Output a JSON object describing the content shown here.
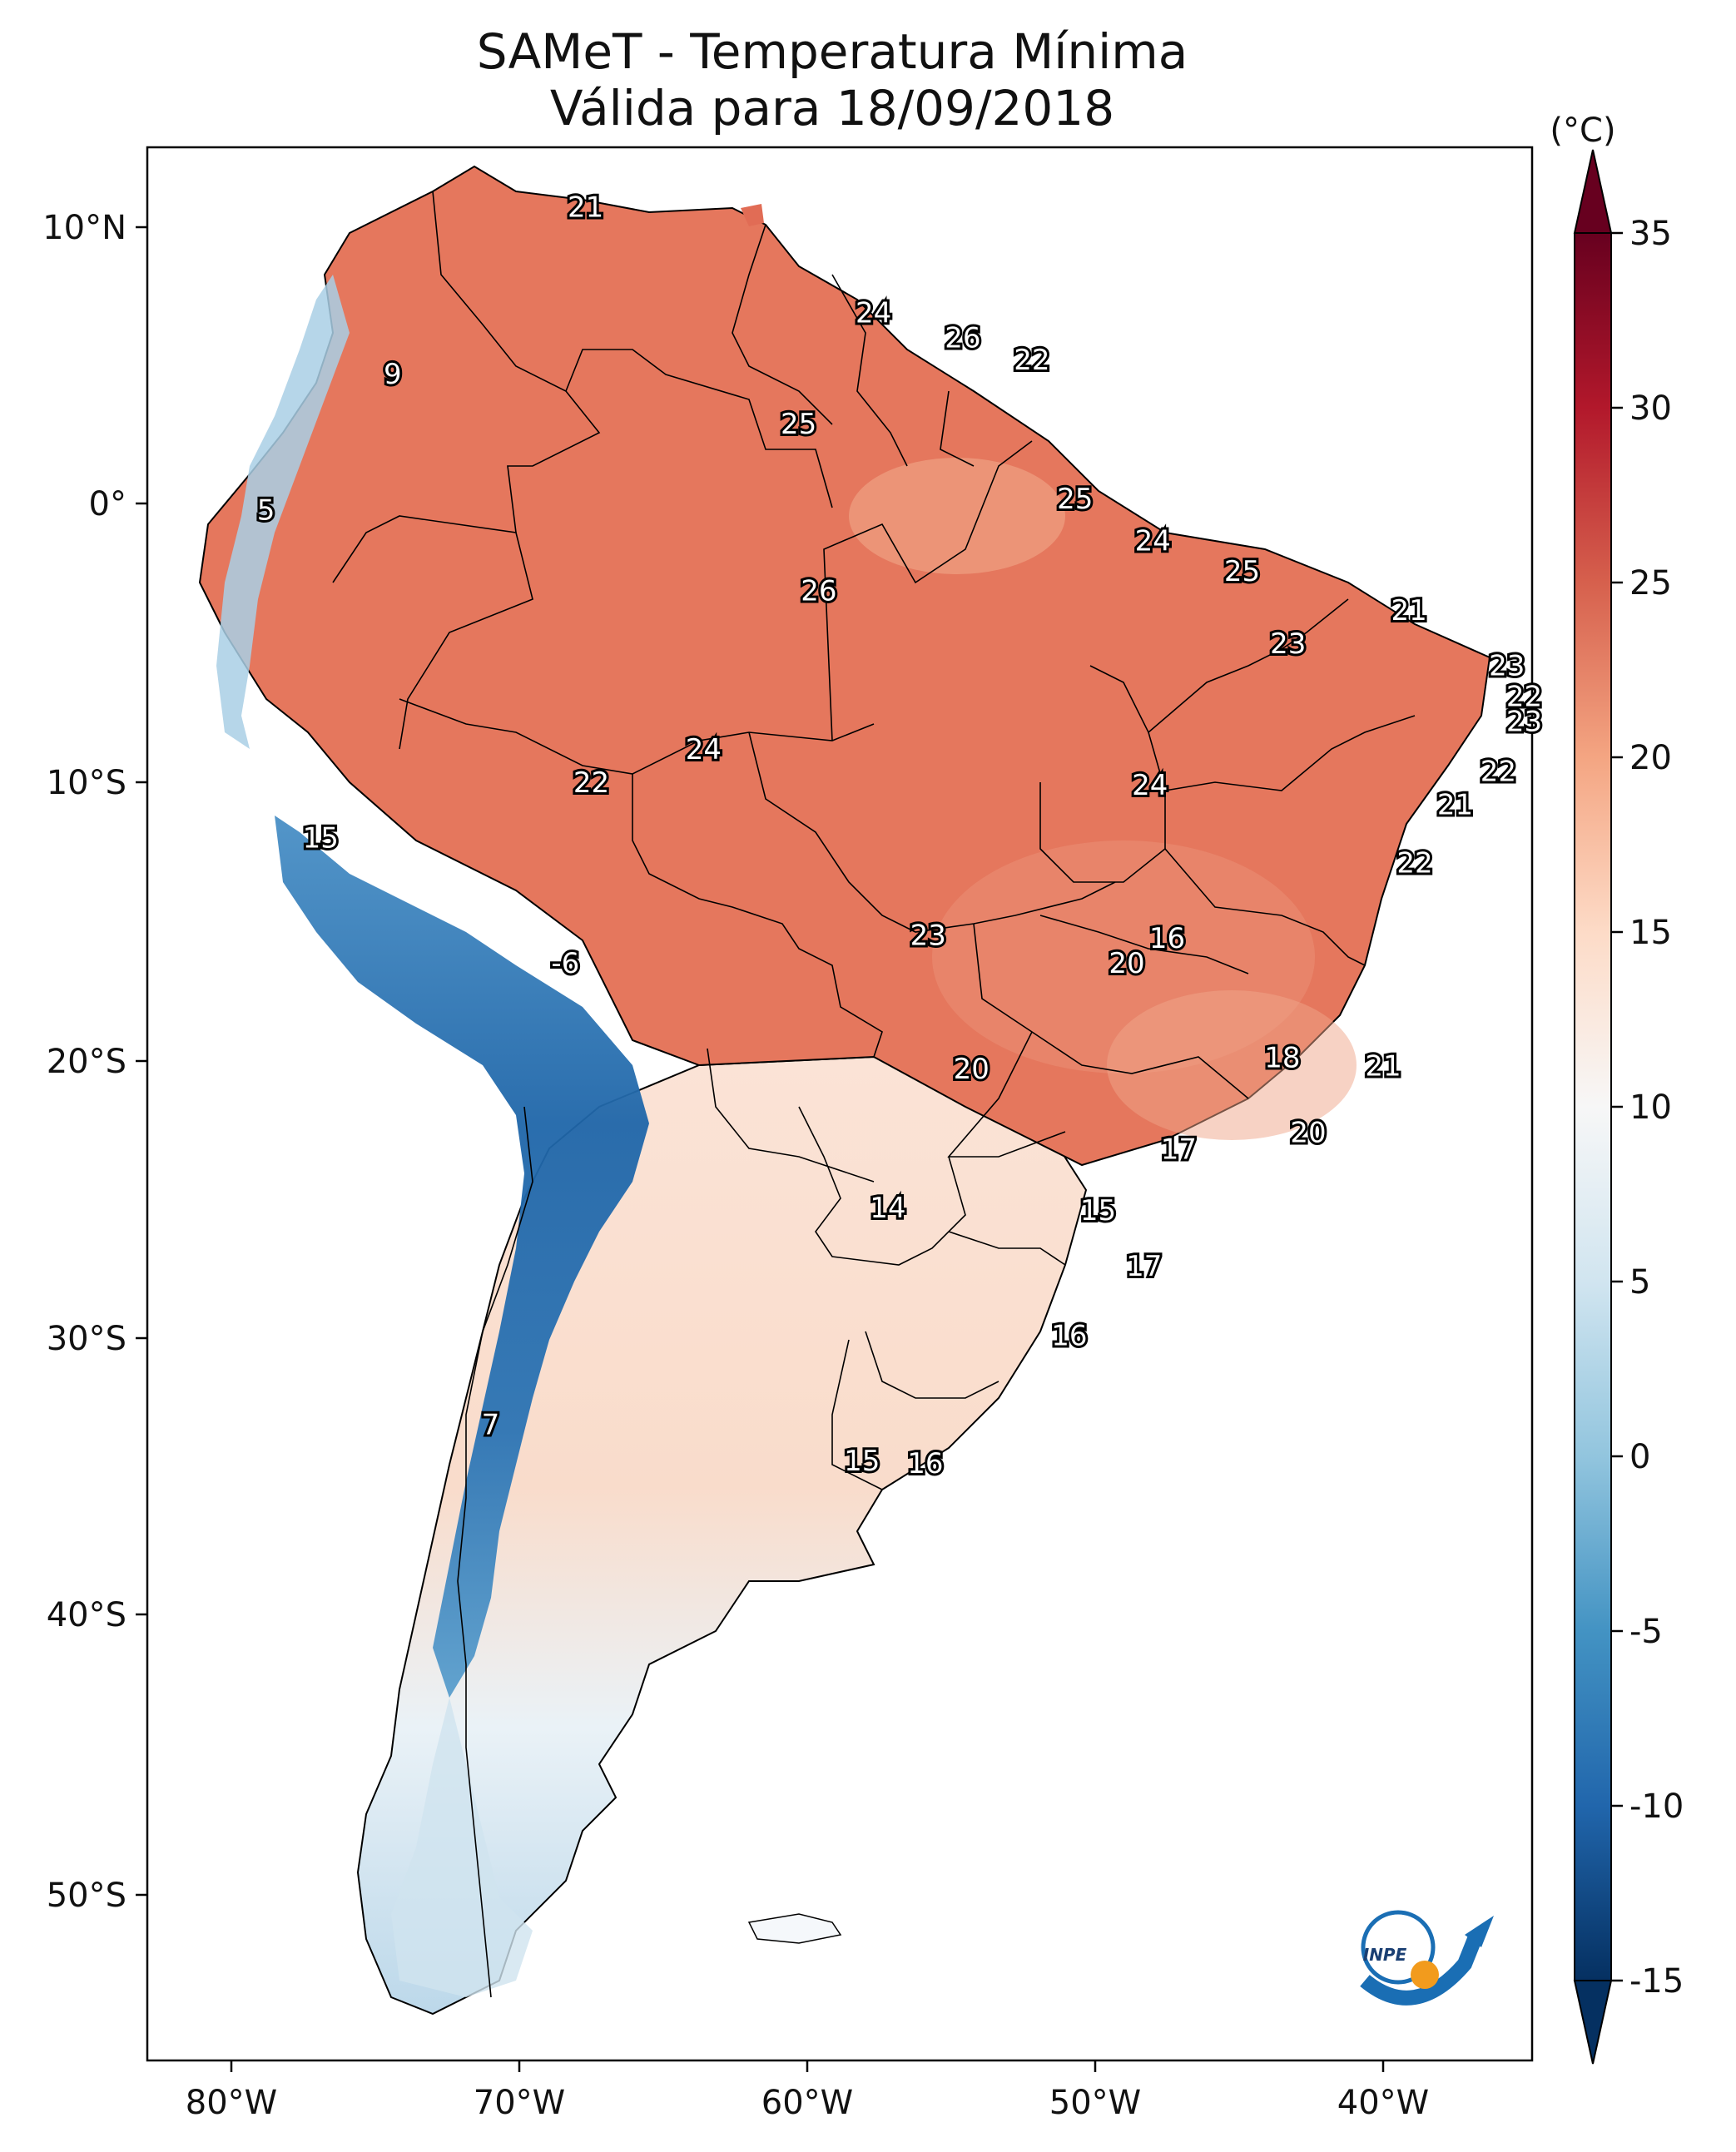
{
  "title_line1": "SAMeT - Temperatura Mínima",
  "title_line2": "Válida para 18/09/2018",
  "colorbar": {
    "unit_label": "(°C)",
    "ticks": [
      "35",
      "30",
      "25",
      "20",
      "15",
      "10",
      "5",
      "0",
      "-5",
      "-10",
      "-15"
    ],
    "range": [
      -15,
      35
    ]
  },
  "axes": {
    "lon_labels": [
      "80°W",
      "70°W",
      "60°W",
      "50°W",
      "40°W"
    ],
    "lat_labels": [
      "10°N",
      "0°",
      "10°S",
      "20°S",
      "30°S",
      "40°S",
      "50°S"
    ]
  },
  "map_labels": [
    {
      "value": "21",
      "lon": -67.7,
      "lat": 10.6
    },
    {
      "value": "24",
      "lon": -57.7,
      "lat": 6.8
    },
    {
      "value": "26",
      "lon": -54.6,
      "lat": 5.9
    },
    {
      "value": "22",
      "lon": -52.2,
      "lat": 5.1
    },
    {
      "value": "9",
      "lon": -74.4,
      "lat": 4.6
    },
    {
      "value": "25",
      "lon": -60.3,
      "lat": 2.8
    },
    {
      "value": "25",
      "lon": -50.7,
      "lat": 0.1
    },
    {
      "value": "5",
      "lon": -78.8,
      "lat": -0.3
    },
    {
      "value": "24",
      "lon": -48.0,
      "lat": -1.4
    },
    {
      "value": "25",
      "lon": -44.9,
      "lat": -2.5
    },
    {
      "value": "26",
      "lon": -59.6,
      "lat": -3.2
    },
    {
      "value": "21",
      "lon": -39.1,
      "lat": -3.9
    },
    {
      "value": "23",
      "lon": -43.3,
      "lat": -5.1
    },
    {
      "value": "23",
      "lon": -35.7,
      "lat": -5.9
    },
    {
      "value": "22",
      "lon": -35.1,
      "lat": -7.0
    },
    {
      "value": "23",
      "lon": -35.1,
      "lat": -7.9
    },
    {
      "value": "24",
      "lon": -63.6,
      "lat": -8.9
    },
    {
      "value": "22",
      "lon": -36.0,
      "lat": -9.7
    },
    {
      "value": "22",
      "lon": -67.5,
      "lat": -10.1
    },
    {
      "value": "24",
      "lon": -48.1,
      "lat": -10.2
    },
    {
      "value": "21",
      "lon": -37.5,
      "lat": -10.9
    },
    {
      "value": "15",
      "lon": -76.9,
      "lat": -12.1
    },
    {
      "value": "22",
      "lon": -38.9,
      "lat": -13.0
    },
    {
      "value": "23",
      "lon": -55.8,
      "lat": -15.6
    },
    {
      "value": "16",
      "lon": -47.5,
      "lat": -15.7
    },
    {
      "value": "20",
      "lon": -48.9,
      "lat": -16.6
    },
    {
      "value": "-6",
      "lon": -68.4,
      "lat": -16.6
    },
    {
      "value": "18",
      "lon": -43.5,
      "lat": -20.0
    },
    {
      "value": "21",
      "lon": -40.0,
      "lat": -20.3
    },
    {
      "value": "20",
      "lon": -54.3,
      "lat": -20.4
    },
    {
      "value": "20",
      "lon": -42.6,
      "lat": -22.7
    },
    {
      "value": "17",
      "lon": -47.1,
      "lat": -23.3
    },
    {
      "value": "14",
      "lon": -57.2,
      "lat": -25.4
    },
    {
      "value": "15",
      "lon": -49.9,
      "lat": -25.5
    },
    {
      "value": "17",
      "lon": -48.3,
      "lat": -27.5
    },
    {
      "value": "16",
      "lon": -50.9,
      "lat": -30.0
    },
    {
      "value": "7",
      "lon": -71.0,
      "lat": -33.2
    },
    {
      "value": "15",
      "lon": -58.1,
      "lat": -34.5
    },
    {
      "value": "16",
      "lon": -55.9,
      "lat": -34.6
    }
  ],
  "logo": {
    "text": "INPE"
  }
}
